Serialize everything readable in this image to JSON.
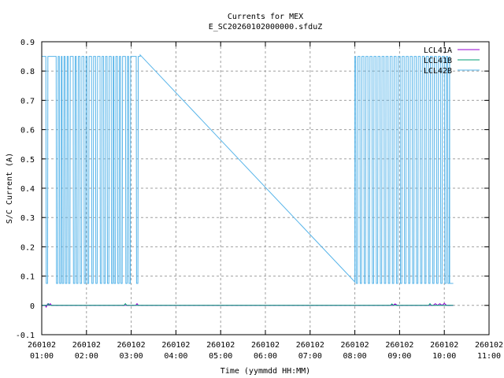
{
  "chart_data": {
    "type": "line",
    "title": "Currents for MEX",
    "subtitle": "E_SC20260102000000.sfduZ",
    "xlabel": "Time (yymmdd HH:MM)",
    "ylabel": "S/C Current (A)",
    "xlim_hours": [
      1,
      11
    ],
    "ylim": [
      -0.1,
      0.9
    ],
    "grid": true,
    "legend_position": "top-right",
    "yticks": [
      "-0.1",
      "0",
      "0.1",
      "0.2",
      "0.3",
      "0.4",
      "0.5",
      "0.6",
      "0.7",
      "0.8",
      "0.9"
    ],
    "xticks": [
      {
        "date": "260102",
        "time": "01:00"
      },
      {
        "date": "260102",
        "time": "02:00"
      },
      {
        "date": "260102",
        "time": "03:00"
      },
      {
        "date": "260102",
        "time": "04:00"
      },
      {
        "date": "260102",
        "time": "05:00"
      },
      {
        "date": "260102",
        "time": "06:00"
      },
      {
        "date": "260102",
        "time": "07:00"
      },
      {
        "date": "260102",
        "time": "08:00"
      },
      {
        "date": "260102",
        "time": "09:00"
      },
      {
        "date": "260102",
        "time": "10:00"
      },
      {
        "date": "260102",
        "time": "11:00"
      }
    ],
    "series": [
      {
        "name": "LCL41A",
        "color": "#9400d3",
        "points": [
          [
            1.0,
            0
          ],
          [
            1.08,
            0
          ],
          [
            1.1,
            -0.006
          ],
          [
            1.13,
            0.005
          ],
          [
            1.16,
            0
          ],
          [
            1.19,
            0.006
          ],
          [
            1.22,
            0
          ],
          [
            3.1,
            0
          ],
          [
            3.13,
            0.006
          ],
          [
            3.16,
            0
          ],
          [
            8.85,
            0
          ],
          [
            8.9,
            0.005
          ],
          [
            8.95,
            0
          ],
          [
            9.75,
            0
          ],
          [
            9.8,
            0.006
          ],
          [
            9.85,
            0
          ],
          [
            9.9,
            0.006
          ],
          [
            9.95,
            0
          ],
          [
            10.0,
            0.007
          ],
          [
            10.05,
            0
          ],
          [
            10.2,
            0
          ]
        ]
      },
      {
        "name": "LCL41B",
        "color": "#009e73",
        "points": [
          [
            1.0,
            0
          ],
          [
            1.12,
            0
          ],
          [
            1.15,
            0.006
          ],
          [
            1.18,
            0
          ],
          [
            2.84,
            0
          ],
          [
            2.87,
            0.006
          ],
          [
            2.9,
            0
          ],
          [
            8.8,
            0
          ],
          [
            8.83,
            0.005
          ],
          [
            8.86,
            0
          ],
          [
            9.65,
            0
          ],
          [
            9.68,
            0.006
          ],
          [
            9.71,
            0
          ],
          [
            10.2,
            0
          ]
        ]
      },
      {
        "name": "LCL42B",
        "color": "#56b4e9",
        "square_wave_segments": [
          {
            "start": 1.0,
            "end": 3.2,
            "high": 0.85,
            "low": 0.075,
            "low_width": 0.03,
            "low_times": [
              1.1,
              1.33,
              1.4,
              1.46,
              1.53,
              1.6,
              1.71,
              1.78,
              1.86,
              1.95,
              2.02,
              2.12,
              2.21,
              2.31,
              2.39,
              2.47,
              2.56,
              2.62,
              2.7,
              2.77,
              2.88,
              2.95,
              3.12
            ]
          },
          {
            "start": 8.0,
            "end": 10.12,
            "high": 0.85,
            "low": 0.075,
            "low_width": 0.03,
            "low_times": [
              8.03,
              8.12,
              8.21,
              8.3,
              8.39,
              8.48,
              8.57,
              8.66,
              8.75,
              8.84,
              8.93,
              9.02,
              9.11,
              9.2,
              9.29,
              9.38,
              9.47,
              9.56,
              9.65,
              9.74,
              9.83,
              9.92,
              10.01,
              10.08
            ]
          }
        ],
        "ramp": [
          [
            3.2,
            0.855
          ],
          [
            8.0,
            0.08
          ]
        ],
        "tail": [
          [
            10.12,
            0.075
          ],
          [
            10.2,
            0.075
          ]
        ]
      }
    ]
  }
}
